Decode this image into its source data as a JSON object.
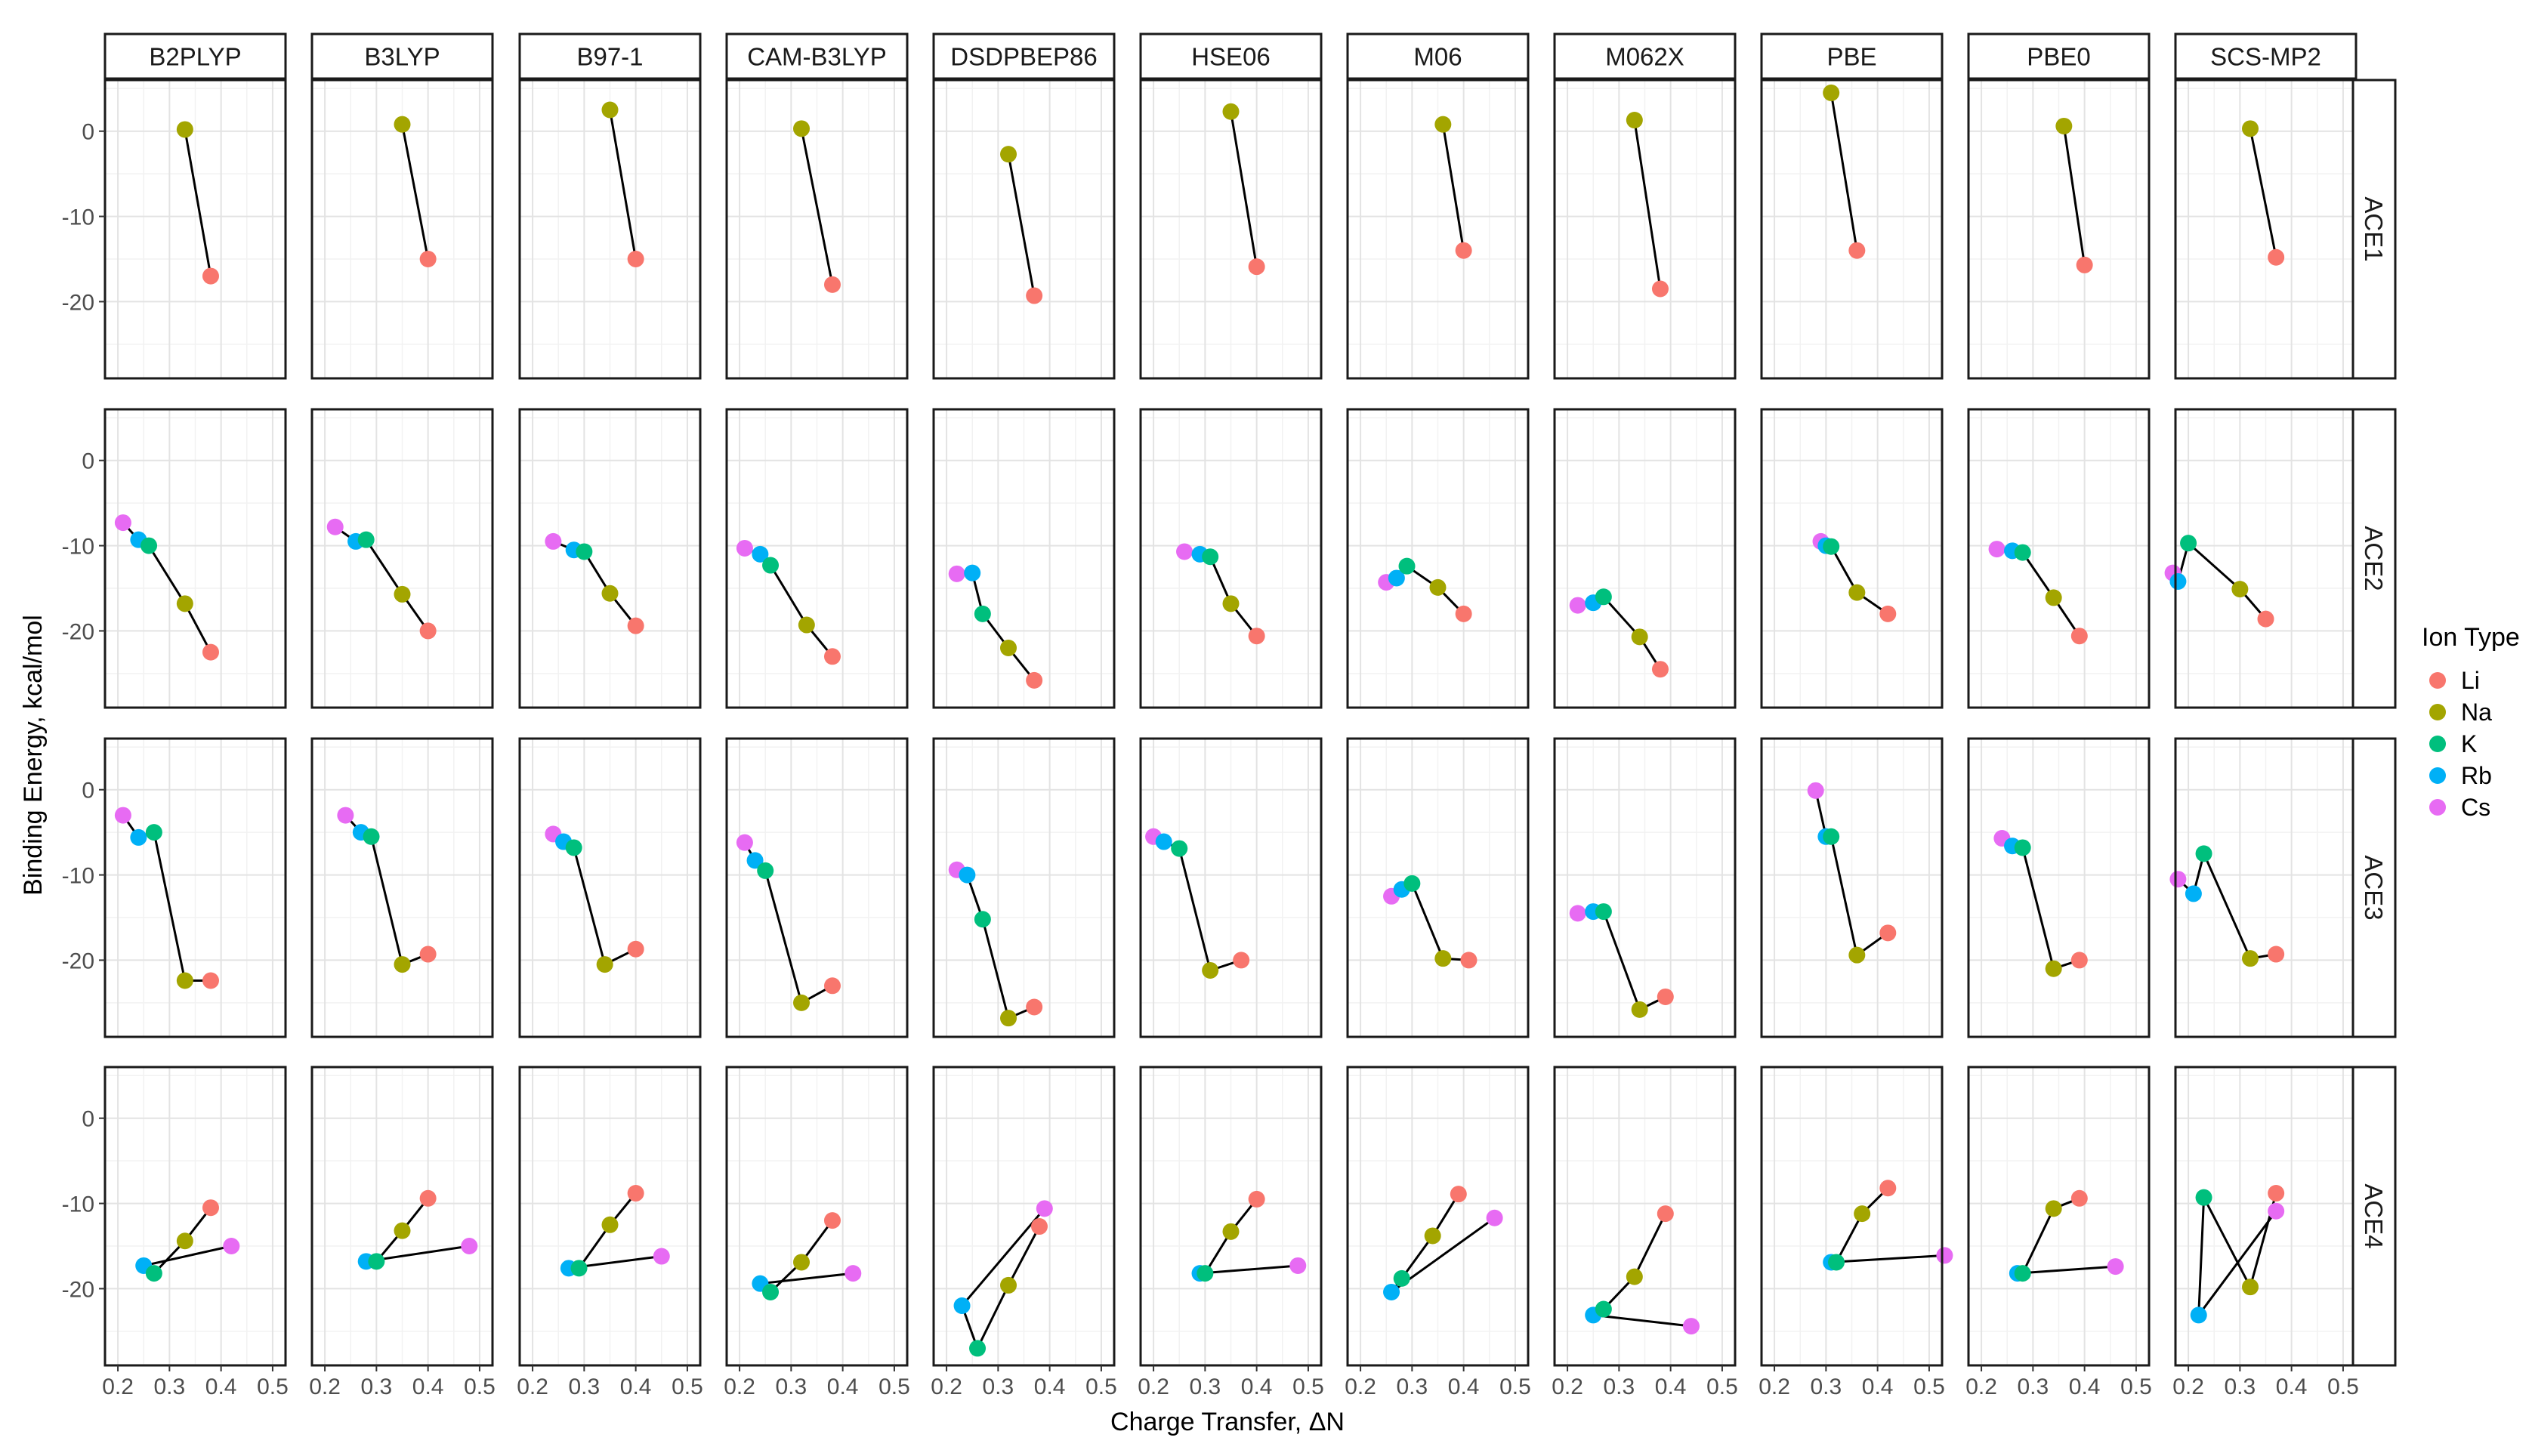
{
  "chart_data": {
    "type": "scatter",
    "subtype": "faceted-grid",
    "xlabel": "Charge Transfer, ΔN",
    "ylabel": "Binding Energy, kcal/mol",
    "xlim": [
      0.175,
      0.525
    ],
    "ylim": [
      -29,
      6
    ],
    "xticks": [
      "0.2",
      "0.3",
      "0.4",
      "0.5"
    ],
    "xtick_values": [
      0.2,
      0.3,
      0.4,
      0.5
    ],
    "yticks": [
      "0",
      "-10",
      "-20"
    ],
    "ytick_values": [
      0,
      -10,
      -20
    ],
    "grid": true,
    "legend_position": "right",
    "legend": {
      "title": "Ion Type",
      "items": [
        {
          "name": "Li",
          "color": "#F8766D"
        },
        {
          "name": "Na",
          "color": "#A3A500"
        },
        {
          "name": "K",
          "color": "#00BF7D"
        },
        {
          "name": "Rb",
          "color": "#00B0F6"
        },
        {
          "name": "Cs",
          "color": "#E76BF3"
        }
      ]
    },
    "line_order": [
      "Cs",
      "Rb",
      "K",
      "Na",
      "Li"
    ],
    "functionals": [
      "B2PLYP",
      "B3LYP",
      "B97-1",
      "CAM-B3LYP",
      "DSDPBEP86",
      "HSE06",
      "M06",
      "M062X",
      "PBE",
      "PBE0",
      "SCS-MP2"
    ],
    "systems": [
      "ACE1",
      "ACE2",
      "ACE3",
      "ACE4"
    ],
    "facets": {
      "ACE1": {
        "B2PLYP": {
          "Na": [
            0.33,
            0.2
          ],
          "Li": [
            0.38,
            -17.0
          ]
        },
        "B3LYP": {
          "Na": [
            0.35,
            0.8
          ],
          "Li": [
            0.4,
            -15.0
          ]
        },
        "B97-1": {
          "Na": [
            0.35,
            2.5
          ],
          "Li": [
            0.4,
            -15.0
          ]
        },
        "CAM-B3LYP": {
          "Na": [
            0.32,
            0.3
          ],
          "Li": [
            0.38,
            -18.0
          ]
        },
        "DSDPBEP86": {
          "Na": [
            0.32,
            -2.7
          ],
          "Li": [
            0.37,
            -19.3
          ]
        },
        "HSE06": {
          "Na": [
            0.35,
            2.3
          ],
          "Li": [
            0.4,
            -15.9
          ]
        },
        "M06": {
          "Na": [
            0.36,
            0.8
          ],
          "Li": [
            0.4,
            -14.0
          ]
        },
        "M062X": {
          "Na": [
            0.33,
            1.3
          ],
          "Li": [
            0.38,
            -18.5
          ]
        },
        "PBE": {
          "Na": [
            0.31,
            4.5
          ],
          "Li": [
            0.36,
            -14.0
          ]
        },
        "PBE0": {
          "Na": [
            0.36,
            0.6
          ],
          "Li": [
            0.4,
            -15.7
          ]
        },
        "SCS-MP2": {
          "Na": [
            0.32,
            0.3
          ],
          "Li": [
            0.37,
            -14.8
          ]
        }
      },
      "ACE2": {
        "B2PLYP": {
          "Cs": [
            0.21,
            -7.3
          ],
          "Rb": [
            0.24,
            -9.3
          ],
          "K": [
            0.26,
            -10.0
          ],
          "Na": [
            0.33,
            -16.8
          ],
          "Li": [
            0.38,
            -22.5
          ]
        },
        "B3LYP": {
          "Cs": [
            0.22,
            -7.8
          ],
          "Rb": [
            0.26,
            -9.5
          ],
          "K": [
            0.28,
            -9.3
          ],
          "Na": [
            0.35,
            -15.7
          ],
          "Li": [
            0.4,
            -20.0
          ]
        },
        "B97-1": {
          "Cs": [
            0.24,
            -9.5
          ],
          "Rb": [
            0.28,
            -10.5
          ],
          "K": [
            0.3,
            -10.7
          ],
          "Na": [
            0.35,
            -15.6
          ],
          "Li": [
            0.4,
            -19.4
          ]
        },
        "CAM-B3LYP": {
          "Cs": [
            0.21,
            -10.3
          ],
          "Rb": [
            0.24,
            -11.0
          ],
          "K": [
            0.26,
            -12.3
          ],
          "Na": [
            0.33,
            -19.3
          ],
          "Li": [
            0.38,
            -23.0
          ]
        },
        "DSDPBEP86": {
          "Cs": [
            0.22,
            -13.3
          ],
          "Rb": [
            0.25,
            -13.2
          ],
          "K": [
            0.27,
            -18.0
          ],
          "Na": [
            0.32,
            -22.0
          ],
          "Li": [
            0.37,
            -25.8
          ]
        },
        "HSE06": {
          "Cs": [
            0.26,
            -10.7
          ],
          "Rb": [
            0.29,
            -11.0
          ],
          "K": [
            0.31,
            -11.3
          ],
          "Na": [
            0.35,
            -16.8
          ],
          "Li": [
            0.4,
            -20.6
          ]
        },
        "M06": {
          "Cs": [
            0.25,
            -14.3
          ],
          "Rb": [
            0.27,
            -13.8
          ],
          "K": [
            0.29,
            -12.4
          ],
          "Na": [
            0.35,
            -14.9
          ],
          "Li": [
            0.4,
            -18.0
          ]
        },
        "M062X": {
          "Cs": [
            0.22,
            -17.0
          ],
          "Rb": [
            0.25,
            -16.7
          ],
          "K": [
            0.27,
            -16.0
          ],
          "Na": [
            0.34,
            -20.7
          ],
          "Li": [
            0.38,
            -24.5
          ]
        },
        "PBE": {
          "Cs": [
            0.29,
            -9.5
          ],
          "Rb": [
            0.3,
            -10.0
          ],
          "K": [
            0.31,
            -10.1
          ],
          "Na": [
            0.36,
            -15.5
          ],
          "Li": [
            0.42,
            -18.0
          ]
        },
        "PBE0": {
          "Cs": [
            0.23,
            -10.4
          ],
          "Rb": [
            0.26,
            -10.6
          ],
          "K": [
            0.28,
            -10.8
          ],
          "Na": [
            0.34,
            -16.1
          ],
          "Li": [
            0.39,
            -20.6
          ]
        },
        "SCS-MP2": {
          "Cs": [
            0.17,
            -13.2
          ],
          "Rb": [
            0.18,
            -14.2
          ],
          "K": [
            0.2,
            -9.7
          ],
          "Na": [
            0.3,
            -15.1
          ],
          "Li": [
            0.35,
            -18.6
          ]
        }
      },
      "ACE3": {
        "B2PLYP": {
          "Cs": [
            0.21,
            -3.0
          ],
          "Rb": [
            0.24,
            -5.6
          ],
          "K": [
            0.27,
            -5.0
          ],
          "Na": [
            0.33,
            -22.4
          ],
          "Li": [
            0.38,
            -22.4
          ]
        },
        "B3LYP": {
          "Cs": [
            0.24,
            -3.0
          ],
          "Rb": [
            0.27,
            -5.0
          ],
          "K": [
            0.29,
            -5.5
          ],
          "Na": [
            0.35,
            -20.5
          ],
          "Li": [
            0.4,
            -19.3
          ]
        },
        "B97-1": {
          "Cs": [
            0.24,
            -5.2
          ],
          "Rb": [
            0.26,
            -6.1
          ],
          "K": [
            0.28,
            -6.8
          ],
          "Na": [
            0.34,
            -20.5
          ],
          "Li": [
            0.4,
            -18.7
          ]
        },
        "CAM-B3LYP": {
          "Cs": [
            0.21,
            -6.2
          ],
          "Rb": [
            0.23,
            -8.3
          ],
          "K": [
            0.25,
            -9.5
          ],
          "Na": [
            0.32,
            -25.0
          ],
          "Li": [
            0.38,
            -23.0
          ]
        },
        "DSDPBEP86": {
          "Cs": [
            0.22,
            -9.4
          ],
          "Rb": [
            0.24,
            -10.0
          ],
          "K": [
            0.27,
            -15.2
          ],
          "Na": [
            0.32,
            -26.8
          ],
          "Li": [
            0.37,
            -25.5
          ]
        },
        "HSE06": {
          "Cs": [
            0.2,
            -5.5
          ],
          "Rb": [
            0.22,
            -6.1
          ],
          "K": [
            0.25,
            -6.9
          ],
          "Na": [
            0.31,
            -21.2
          ],
          "Li": [
            0.37,
            -20.0
          ]
        },
        "M06": {
          "Cs": [
            0.26,
            -12.5
          ],
          "Rb": [
            0.28,
            -11.7
          ],
          "K": [
            0.3,
            -11.0
          ],
          "Na": [
            0.36,
            -19.8
          ],
          "Li": [
            0.41,
            -20.0
          ]
        },
        "M062X": {
          "Cs": [
            0.22,
            -14.5
          ],
          "Rb": [
            0.25,
            -14.3
          ],
          "K": [
            0.27,
            -14.3
          ],
          "Na": [
            0.34,
            -25.8
          ],
          "Li": [
            0.39,
            -24.3
          ]
        },
        "PBE": {
          "Cs": [
            0.28,
            -0.1
          ],
          "Rb": [
            0.3,
            -5.5
          ],
          "K": [
            0.31,
            -5.5
          ],
          "Na": [
            0.36,
            -19.4
          ],
          "Li": [
            0.42,
            -16.8
          ]
        },
        "PBE0": {
          "Cs": [
            0.24,
            -5.7
          ],
          "Rb": [
            0.26,
            -6.6
          ],
          "K": [
            0.28,
            -6.8
          ],
          "Na": [
            0.34,
            -21.0
          ],
          "Li": [
            0.39,
            -20.0
          ]
        },
        "SCS-MP2": {
          "Cs": [
            0.18,
            -10.5
          ],
          "Rb": [
            0.21,
            -12.2
          ],
          "K": [
            0.23,
            -7.5
          ],
          "Na": [
            0.32,
            -19.8
          ],
          "Li": [
            0.37,
            -19.3
          ]
        }
      },
      "ACE4": {
        "B2PLYP": {
          "Cs": [
            0.42,
            -15.0
          ],
          "Rb": [
            0.25,
            -17.3
          ],
          "K": [
            0.27,
            -18.2
          ],
          "Na": [
            0.33,
            -14.4
          ],
          "Li": [
            0.38,
            -10.5
          ]
        },
        "B3LYP": {
          "Cs": [
            0.48,
            -15.0
          ],
          "Rb": [
            0.28,
            -16.8
          ],
          "K": [
            0.3,
            -16.8
          ],
          "Na": [
            0.35,
            -13.2
          ],
          "Li": [
            0.4,
            -9.4
          ]
        },
        "B97-1": {
          "Cs": [
            0.45,
            -16.2
          ],
          "Rb": [
            0.27,
            -17.6
          ],
          "K": [
            0.29,
            -17.6
          ],
          "Na": [
            0.35,
            -12.5
          ],
          "Li": [
            0.4,
            -8.8
          ]
        },
        "CAM-B3LYP": {
          "Cs": [
            0.42,
            -18.2
          ],
          "Rb": [
            0.24,
            -19.4
          ],
          "K": [
            0.26,
            -20.4
          ],
          "Na": [
            0.32,
            -16.9
          ],
          "Li": [
            0.38,
            -12.0
          ]
        },
        "DSDPBEP86": {
          "Cs": [
            0.39,
            -10.6
          ],
          "Rb": [
            0.23,
            -22.0
          ],
          "K": [
            0.26,
            -27.0
          ],
          "Na": [
            0.32,
            -19.6
          ],
          "Li": [
            0.38,
            -12.7
          ]
        },
        "HSE06": {
          "Cs": [
            0.48,
            -17.3
          ],
          "Rb": [
            0.29,
            -18.2
          ],
          "K": [
            0.3,
            -18.2
          ],
          "Na": [
            0.35,
            -13.3
          ],
          "Li": [
            0.4,
            -9.5
          ]
        },
        "M06": {
          "Cs": [
            0.46,
            -11.7
          ],
          "Rb": [
            0.26,
            -20.4
          ],
          "K": [
            0.28,
            -18.8
          ],
          "Na": [
            0.34,
            -13.8
          ],
          "Li": [
            0.39,
            -8.9
          ]
        },
        "M062X": {
          "Cs": [
            0.44,
            -24.4
          ],
          "Rb": [
            0.25,
            -23.1
          ],
          "K": [
            0.27,
            -22.4
          ],
          "Na": [
            0.33,
            -18.6
          ],
          "Li": [
            0.39,
            -11.2
          ]
        },
        "PBE": {
          "Cs": [
            0.53,
            -16.1
          ],
          "Rb": [
            0.31,
            -16.9
          ],
          "K": [
            0.32,
            -16.9
          ],
          "Na": [
            0.37,
            -11.2
          ],
          "Li": [
            0.42,
            -8.2
          ]
        },
        "PBE0": {
          "Cs": [
            0.46,
            -17.4
          ],
          "Rb": [
            0.27,
            -18.2
          ],
          "K": [
            0.28,
            -18.2
          ],
          "Na": [
            0.34,
            -10.6
          ],
          "Li": [
            0.39,
            -9.4
          ]
        },
        "SCS-MP2": {
          "Cs": [
            0.37,
            -10.9
          ],
          "Rb": [
            0.22,
            -23.1
          ],
          "K": [
            0.23,
            -9.3
          ],
          "Na": [
            0.32,
            -19.8
          ],
          "Li": [
            0.37,
            -8.8
          ]
        }
      }
    }
  }
}
